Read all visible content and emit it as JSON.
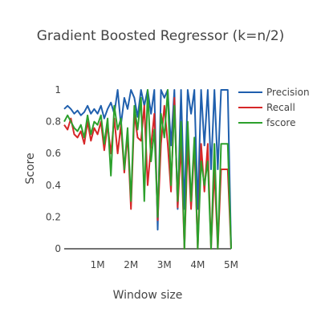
{
  "chart_data": {
    "type": "line",
    "title": "Gradient Boosted Regressor (k=n/2)",
    "xlabel": "Window size",
    "ylabel": "Score",
    "xlim": [
      0,
      5000000
    ],
    "ylim": [
      0,
      1
    ],
    "x_ticks": [
      {
        "value": 1000000,
        "label": "1M"
      },
      {
        "value": 2000000,
        "label": "2M"
      },
      {
        "value": 3000000,
        "label": "3M"
      },
      {
        "value": 4000000,
        "label": "4M"
      },
      {
        "value": 5000000,
        "label": "5M"
      }
    ],
    "y_ticks": [
      {
        "value": 0,
        "label": "0"
      },
      {
        "value": 0.2,
        "label": "0.2"
      },
      {
        "value": 0.4,
        "label": "0.4"
      },
      {
        "value": 0.6,
        "label": "0.6"
      },
      {
        "value": 0.8,
        "label": "0.8"
      },
      {
        "value": 1,
        "label": "1"
      }
    ],
    "legend_position": "right",
    "grid": false,
    "series": [
      {
        "name": "Precision",
        "color": "#1f5fad",
        "x": [
          0,
          100000,
          200000,
          300000,
          400000,
          500000,
          600000,
          700000,
          800000,
          900000,
          1000000,
          1100000,
          1200000,
          1300000,
          1400000,
          1500000,
          1600000,
          1700000,
          1800000,
          1900000,
          2000000,
          2100000,
          2200000,
          2300000,
          2400000,
          2500000,
          2600000,
          2700000,
          2800000,
          2900000,
          3000000,
          3100000,
          3200000,
          3300000,
          3400000,
          3500000,
          3600000,
          3700000,
          3800000,
          3900000,
          4000000,
          4100000,
          4200000,
          4300000,
          4400000,
          4500000,
          4600000,
          4700000,
          4800000,
          4900000,
          5000000
        ],
        "y": [
          0.88,
          0.9,
          0.88,
          0.85,
          0.87,
          0.84,
          0.86,
          0.9,
          0.85,
          0.88,
          0.85,
          0.9,
          0.82,
          0.88,
          0.92,
          0.85,
          1.0,
          0.78,
          0.95,
          0.88,
          1.0,
          0.95,
          0.83,
          1.0,
          0.9,
          1.0,
          0.85,
          1.0,
          0.12,
          1.0,
          0.95,
          1.0,
          0.65,
          1.0,
          0.25,
          1.0,
          0.25,
          1.0,
          0.85,
          1.0,
          0.25,
          1.0,
          0.65,
          1.0,
          0.5,
          1.0,
          0.5,
          1.0,
          1.0,
          1.0,
          0.0
        ]
      },
      {
        "name": "Recall",
        "color": "#d62728",
        "x": [
          0,
          100000,
          200000,
          300000,
          400000,
          500000,
          600000,
          700000,
          800000,
          900000,
          1000000,
          1100000,
          1200000,
          1300000,
          1400000,
          1500000,
          1600000,
          1700000,
          1800000,
          1900000,
          2000000,
          2100000,
          2200000,
          2300000,
          2400000,
          2500000,
          2600000,
          2700000,
          2800000,
          2900000,
          3000000,
          3100000,
          3200000,
          3300000,
          3400000,
          3500000,
          3600000,
          3700000,
          3800000,
          3900000,
          4000000,
          4100000,
          4200000,
          4300000,
          4400000,
          4500000,
          4600000,
          4700000,
          4800000,
          4900000,
          5000000
        ],
        "y": [
          0.78,
          0.75,
          0.82,
          0.72,
          0.7,
          0.74,
          0.66,
          0.8,
          0.68,
          0.76,
          0.72,
          0.8,
          0.62,
          0.78,
          0.6,
          0.82,
          0.6,
          0.78,
          0.48,
          0.72,
          0.25,
          0.85,
          0.7,
          0.68,
          0.9,
          0.4,
          0.65,
          0.85,
          0.18,
          0.66,
          0.9,
          0.66,
          0.36,
          0.95,
          0.26,
          0.66,
          0.0,
          0.66,
          0.25,
          0.66,
          0.0,
          0.66,
          0.36,
          0.66,
          0.0,
          0.5,
          0.0,
          0.5,
          0.5,
          0.5,
          0.0
        ]
      },
      {
        "name": "fscore",
        "color": "#2ca02c",
        "x": [
          0,
          100000,
          200000,
          300000,
          400000,
          500000,
          600000,
          700000,
          800000,
          900000,
          1000000,
          1100000,
          1200000,
          1300000,
          1400000,
          1500000,
          1600000,
          1700000,
          1800000,
          1900000,
          2000000,
          2100000,
          2200000,
          2300000,
          2400000,
          2500000,
          2600000,
          2700000,
          2800000,
          2900000,
          3000000,
          3100000,
          3200000,
          3300000,
          3400000,
          3500000,
          3600000,
          3700000,
          3800000,
          3900000,
          4000000,
          4100000,
          4200000,
          4300000,
          4400000,
          4500000,
          4600000,
          4700000,
          4800000,
          4900000,
          5000000
        ],
        "y": [
          0.8,
          0.84,
          0.8,
          0.76,
          0.74,
          0.78,
          0.7,
          0.84,
          0.72,
          0.8,
          0.78,
          0.84,
          0.66,
          0.82,
          0.46,
          0.9,
          0.75,
          0.82,
          0.5,
          0.76,
          0.3,
          0.9,
          0.75,
          0.95,
          0.3,
          1.0,
          0.55,
          0.75,
          0.2,
          0.85,
          0.7,
          1.0,
          0.4,
          0.9,
          0.3,
          0.8,
          0.0,
          0.8,
          0.3,
          0.7,
          0.0,
          0.55,
          0.4,
          0.55,
          0.0,
          0.66,
          0.0,
          0.66,
          0.66,
          0.66,
          0.0
        ]
      }
    ]
  }
}
